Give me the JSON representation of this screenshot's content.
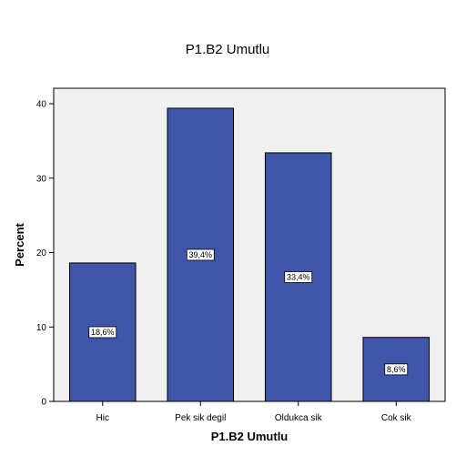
{
  "chart_data": {
    "type": "bar",
    "title": "P1.B2 Umutlu",
    "xlabel": "P1.B2 Umutlu",
    "ylabel": "Percent",
    "categories": [
      "Hic",
      "Pek sik degil",
      "Oldukca sik",
      "Cok sik"
    ],
    "values": [
      18.6,
      39.4,
      33.4,
      8.6
    ],
    "data_labels": [
      "18,6%",
      "39,4%",
      "33,4%",
      "8,6%"
    ],
    "ylim": [
      0,
      40
    ],
    "yticks": [
      0,
      10,
      20,
      30,
      40
    ],
    "grid": false,
    "legend": "none",
    "colors": {
      "bar_fill": "#3f56a8",
      "bar_stroke": "#000000",
      "plot_background": "#f0f0f0",
      "label_box": "#ffffff"
    }
  }
}
